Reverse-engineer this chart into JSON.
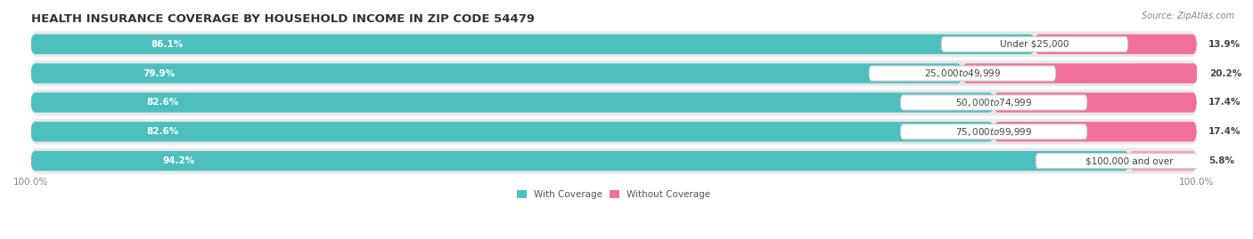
{
  "title": "HEALTH INSURANCE COVERAGE BY HOUSEHOLD INCOME IN ZIP CODE 54479",
  "source": "Source: ZipAtlas.com",
  "categories": [
    "Under $25,000",
    "$25,000 to $49,999",
    "$50,000 to $74,999",
    "$75,000 to $99,999",
    "$100,000 and over"
  ],
  "with_coverage": [
    86.1,
    79.9,
    82.6,
    82.6,
    94.2
  ],
  "without_coverage": [
    13.9,
    20.2,
    17.4,
    17.4,
    5.8
  ],
  "color_coverage": "#4dbfbf",
  "color_no_coverage_normal": "#f0709a",
  "color_no_coverage_light": "#f5a0c0",
  "row_bg_color": "#e8e8e8",
  "title_fontsize": 9.5,
  "label_fontsize": 7.5,
  "pct_fontsize": 7.5,
  "tick_fontsize": 7.5,
  "legend_fontsize": 7.5,
  "figsize": [
    14.06,
    2.69
  ],
  "dpi": 100
}
